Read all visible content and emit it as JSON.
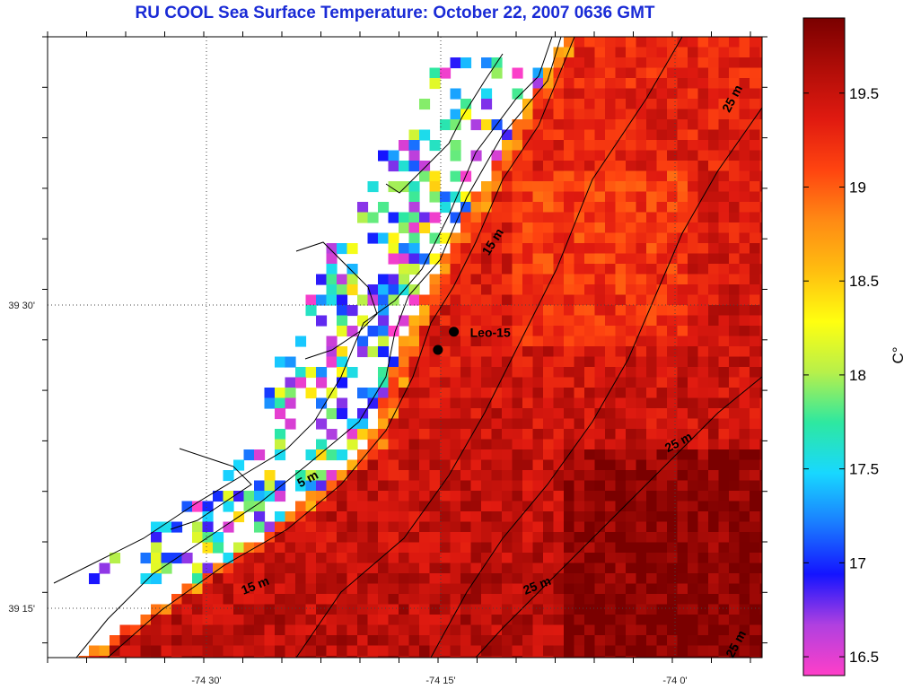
{
  "title": "RU COOL  Sea Surface Temperature:  October 22, 2007 0636 GMT",
  "map": {
    "lon_ticks": [
      {
        "lon": -74.5,
        "label": "-74 30'"
      },
      {
        "lon": -74.25,
        "label": "-74 15'"
      },
      {
        "lon": -74.0,
        "label": "-74 0'"
      }
    ],
    "lat_ticks": [
      {
        "lat": 39.5,
        "label": "39 30'"
      },
      {
        "lat": 39.25,
        "label": "39 15'"
      }
    ],
    "station": {
      "name": "Leo-15",
      "points": [
        [
          -74.236,
          39.478
        ],
        [
          -74.253,
          39.463
        ]
      ]
    },
    "contour_labels": [
      {
        "text": "5 m"
      },
      {
        "text": "15 m"
      },
      {
        "text": "15 m"
      },
      {
        "text": "25 m"
      },
      {
        "text": "25 m"
      },
      {
        "text": "25 m"
      },
      {
        "text": "25 m"
      }
    ]
  },
  "colorbar": {
    "unit": "C°",
    "min": 16.4,
    "max": 19.9,
    "ticks": [
      "16.5",
      "17",
      "17.5",
      "18",
      "18.5",
      "19",
      "19.5"
    ],
    "colors": [
      "#ff3fc8",
      "#b040e0",
      "#1414ff",
      "#1a7cff",
      "#18d8ff",
      "#2ee8a0",
      "#b8f04a",
      "#ffff10",
      "#ffbe10",
      "#ff8a14",
      "#ff4410",
      "#e01a10",
      "#b00d08",
      "#7a0000"
    ]
  }
}
